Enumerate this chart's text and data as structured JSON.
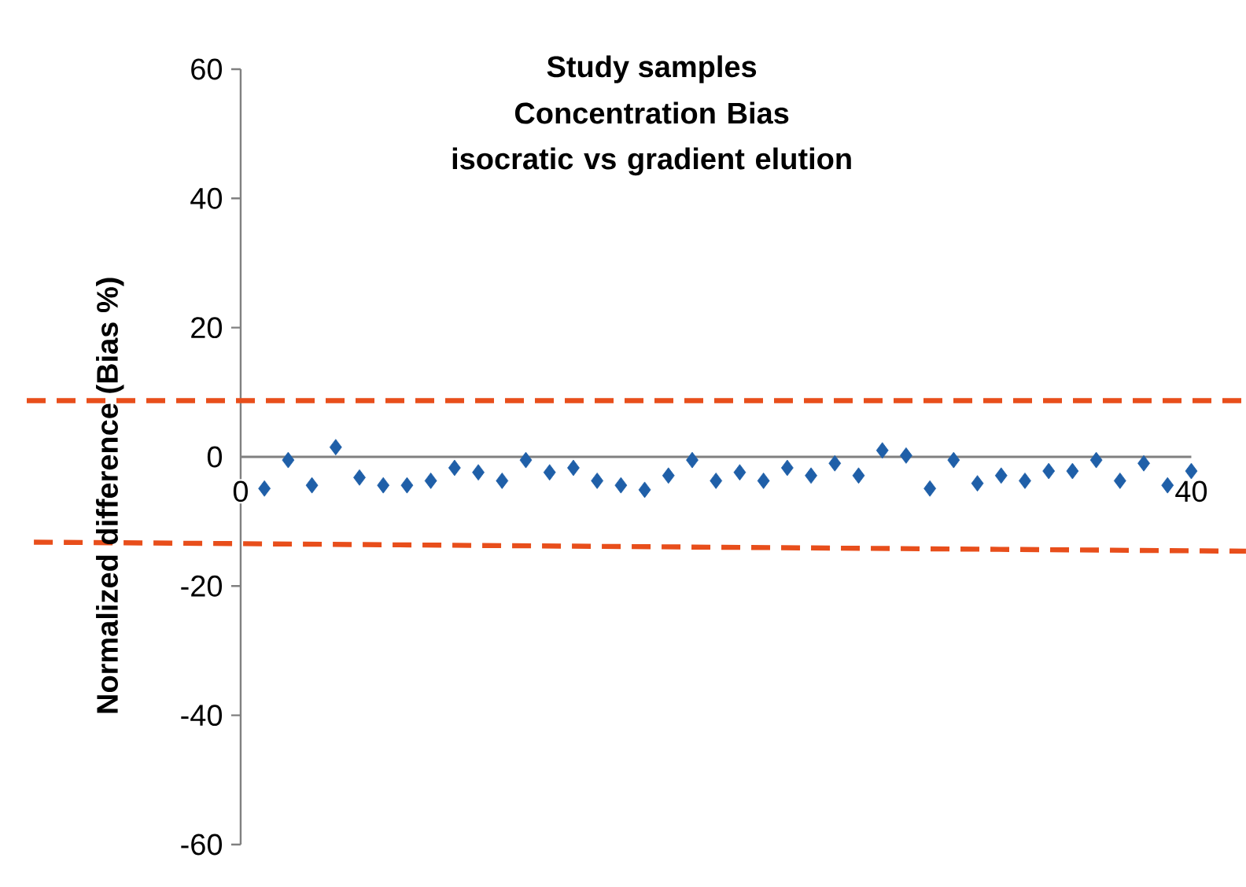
{
  "chart_data": {
    "type": "scatter",
    "title": "Study samples",
    "subtitle": "Concentration Bias isocratic vs gradient elution",
    "ylabel": "Normalized difference (Bias %)",
    "x": [
      1,
      2,
      3,
      4,
      5,
      6,
      7,
      8,
      9,
      10,
      11,
      12,
      13,
      14,
      15,
      16,
      17,
      18,
      19,
      20,
      21,
      22,
      23,
      24,
      25,
      26,
      27,
      28,
      29,
      30,
      31,
      32,
      33,
      34,
      35,
      36,
      37,
      38,
      39,
      40
    ],
    "series": [
      {
        "type": "scatter",
        "color": "#1f5fa8",
        "marker": "diamond",
        "values": [
          -4.9,
          -0.5,
          -4.4,
          1.5,
          -3.2,
          -4.4,
          -4.4,
          -3.7,
          -1.7,
          -2.4,
          -3.7,
          -0.5,
          -2.4,
          -1.7,
          -3.7,
          -4.4,
          -5.1,
          -2.9,
          -0.5,
          -3.7,
          -2.4,
          -3.7,
          -1.7,
          -2.9,
          -1.0,
          -2.9,
          1.0,
          0.2,
          -4.9,
          -0.5,
          -4.1,
          -2.9,
          -3.7,
          -2.2,
          -2.2,
          -0.5,
          -3.7,
          -1.0,
          -4.4,
          -2.2
        ]
      },
      {
        "type": "line",
        "color": "#e84e1b",
        "line_style": "dashed",
        "x": [
          -8.7,
          42.3
        ],
        "values": [
          -13.2,
          -14.6
        ]
      }
    ],
    "ref_lines": [
      {
        "axis": "y",
        "value": 8.7,
        "color": "#e84e1b",
        "line_style": "dashed"
      }
    ],
    "xlim": [
      -9,
      42.5
    ],
    "ylim": [
      -60,
      60
    ],
    "xticks": [
      0,
      40
    ],
    "yticks": [
      -60,
      -40,
      -20,
      0,
      20,
      40,
      60
    ],
    "grid": false
  }
}
